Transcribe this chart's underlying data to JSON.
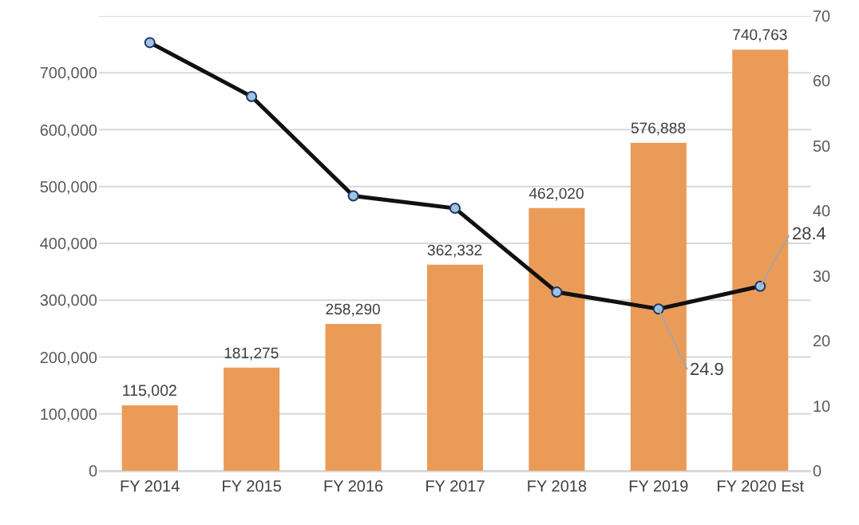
{
  "chart_data": {
    "type": "bar",
    "categories": [
      "FY 2014",
      "FY 2015",
      "FY 2016",
      "FY 2017",
      "FY 2018",
      "FY 2019",
      "FY 2020 Est"
    ],
    "series": [
      {
        "color": "#eb9b58",
        "values": [
          115002,
          181275,
          258290,
          362332,
          462020,
          576888,
          740763
        ],
        "value_labels": [
          "115,002",
          "181,275",
          "258,290",
          "362,332",
          "462,020",
          "576,888",
          "740,763"
        ]
      },
      {
        "type": "line",
        "axis": "y2",
        "color": "#111111",
        "marker": "circle",
        "values": [
          65.9,
          57.6,
          42.3,
          40.4,
          27.5,
          24.9,
          28.4
        ],
        "value_labels": [
          null,
          null,
          null,
          null,
          null,
          "24.9",
          "28.4"
        ]
      }
    ],
    "ylim": [
      0,
      800000
    ],
    "yticks": [
      {
        "value": 0,
        "label": "0"
      },
      {
        "value": 100000,
        "label": "100,000"
      },
      {
        "value": 200000,
        "label": "200,000"
      },
      {
        "value": 300000,
        "label": "300,000"
      },
      {
        "value": 400000,
        "label": "400,000"
      },
      {
        "value": 500000,
        "label": "500,000"
      },
      {
        "value": 600000,
        "label": "600,000"
      },
      {
        "value": 700000,
        "label": "700,000"
      },
      {
        "value": 800000,
        "label": null
      }
    ],
    "y2lim": [
      0,
      70
    ],
    "y2ticks": [
      0,
      10,
      20,
      30,
      40,
      50,
      60,
      70
    ],
    "grid": "y"
  }
}
